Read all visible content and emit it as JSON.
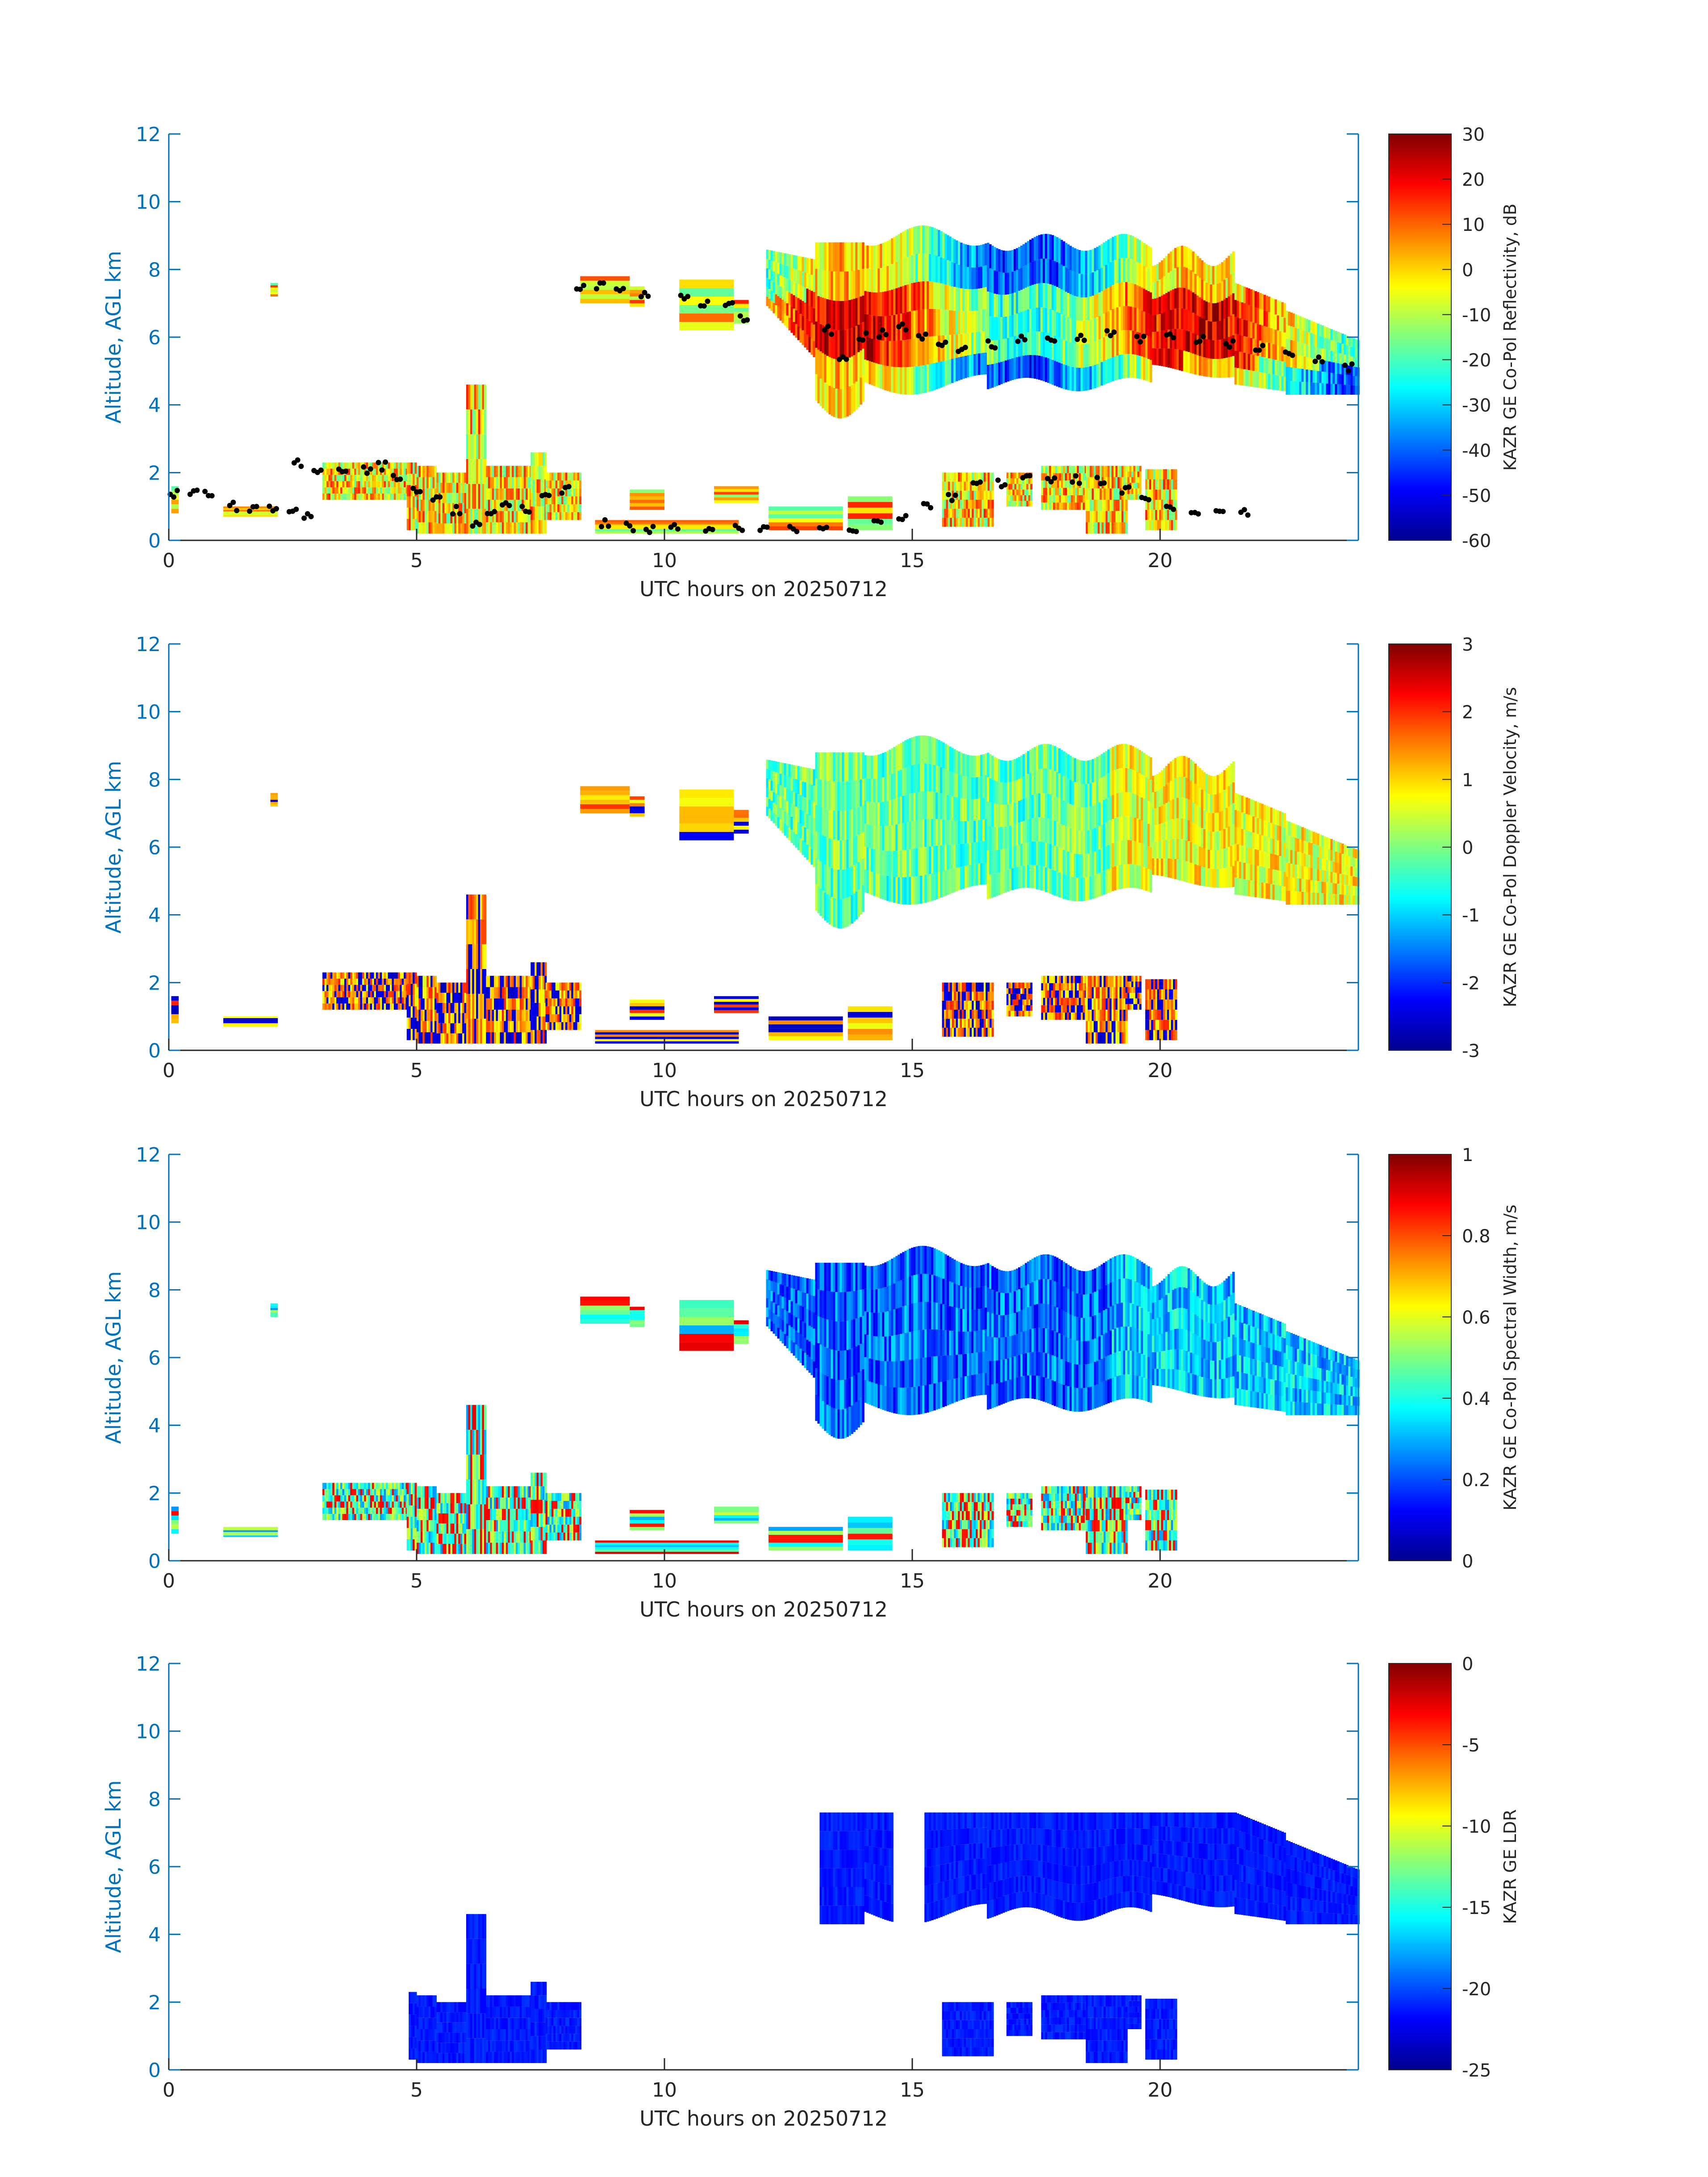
{
  "figure": {
    "date_label": "20250712",
    "axis_color": "#0072BD",
    "text_color": "#262626"
  },
  "colormap": "jet",
  "chart_data": [
    {
      "type": "heatmap",
      "variable": "reflectivity",
      "xlabel": "UTC hours on 20250712",
      "ylabel": "Altitude, AGL km",
      "xlim": [
        0,
        24
      ],
      "ylim": [
        0,
        12
      ],
      "xticks": [
        0,
        5,
        10,
        15,
        20
      ],
      "yticks": [
        0,
        2,
        4,
        6,
        8,
        10,
        12
      ],
      "colorbar": {
        "label": "KAZR GE Co-Pol Reflectivity, dB",
        "range": [
          -60,
          30
        ],
        "ticks": [
          -60,
          -50,
          -40,
          -30,
          -20,
          -10,
          0,
          10,
          20,
          30
        ]
      },
      "overlay": {
        "type": "scatter",
        "color": "#000000",
        "description_points": [
          [
            0.1,
            1.4
          ],
          [
            0.5,
            1.4
          ],
          [
            0.8,
            1.4
          ],
          [
            1.3,
            1.0
          ],
          [
            1.7,
            0.9
          ],
          [
            2.1,
            0.9
          ],
          [
            2.5,
            0.8
          ],
          [
            2.8,
            0.7
          ],
          [
            2.6,
            2.3
          ],
          [
            3.0,
            2.1
          ],
          [
            3.5,
            2.1
          ],
          [
            4.0,
            2.1
          ],
          [
            4.3,
            2.2
          ],
          [
            4.6,
            1.9
          ],
          [
            5.0,
            1.5
          ],
          [
            5.4,
            1.2
          ],
          [
            5.8,
            0.9
          ],
          [
            6.2,
            0.5
          ],
          [
            6.5,
            0.8
          ],
          [
            6.8,
            1.0
          ],
          [
            7.2,
            0.9
          ],
          [
            7.6,
            1.3
          ],
          [
            8.0,
            1.5
          ],
          [
            8.3,
            7.5
          ],
          [
            8.7,
            7.5
          ],
          [
            9.1,
            7.4
          ],
          [
            9.6,
            7.3
          ],
          [
            10.4,
            7.2
          ],
          [
            10.8,
            7.0
          ],
          [
            11.3,
            6.9
          ],
          [
            11.6,
            6.6
          ],
          [
            8.8,
            0.5
          ],
          [
            9.3,
            0.4
          ],
          [
            9.7,
            0.3
          ],
          [
            10.2,
            0.4
          ],
          [
            10.9,
            0.3
          ],
          [
            11.5,
            0.4
          ],
          [
            12.0,
            0.3
          ],
          [
            12.6,
            0.3
          ],
          [
            13.2,
            0.3
          ],
          [
            13.8,
            0.3
          ],
          [
            14.3,
            0.5
          ],
          [
            14.8,
            0.7
          ],
          [
            15.3,
            1.0
          ],
          [
            15.8,
            1.3
          ],
          [
            16.3,
            1.6
          ],
          [
            16.8,
            1.7
          ],
          [
            17.3,
            1.8
          ],
          [
            17.8,
            1.8
          ],
          [
            18.3,
            1.8
          ],
          [
            18.8,
            1.8
          ],
          [
            19.3,
            1.5
          ],
          [
            19.7,
            1.3
          ],
          [
            20.2,
            1.0
          ],
          [
            20.7,
            0.9
          ],
          [
            21.2,
            0.9
          ],
          [
            21.7,
            0.8
          ],
          [
            13.3,
            6.2
          ],
          [
            13.6,
            5.4
          ],
          [
            14.0,
            6.0
          ],
          [
            14.4,
            6.1
          ],
          [
            14.8,
            6.3
          ],
          [
            15.2,
            6.0
          ],
          [
            15.6,
            5.8
          ],
          [
            16.0,
            5.6
          ],
          [
            16.6,
            5.8
          ],
          [
            17.2,
            6.0
          ],
          [
            17.8,
            6.0
          ],
          [
            18.4,
            6.0
          ],
          [
            19.0,
            6.1
          ],
          [
            19.6,
            5.9
          ],
          [
            20.2,
            6.0
          ],
          [
            20.8,
            5.9
          ],
          [
            21.4,
            5.8
          ],
          [
            22.0,
            5.7
          ],
          [
            22.6,
            5.5
          ],
          [
            23.2,
            5.3
          ],
          [
            23.8,
            5.1
          ]
        ]
      }
    },
    {
      "type": "heatmap",
      "variable": "velocity",
      "xlabel": "UTC hours on 20250712",
      "ylabel": "Altitude, AGL km",
      "xlim": [
        0,
        24
      ],
      "ylim": [
        0,
        12
      ],
      "xticks": [
        0,
        5,
        10,
        15,
        20
      ],
      "yticks": [
        0,
        2,
        4,
        6,
        8,
        10,
        12
      ],
      "colorbar": {
        "label": "KAZR GE Co-Pol Doppler Velocity, m/s",
        "range": [
          -3,
          3
        ],
        "ticks": [
          -3,
          -2,
          -1,
          0,
          1,
          2,
          3
        ]
      }
    },
    {
      "type": "heatmap",
      "variable": "spectral_width",
      "xlabel": "UTC hours on 20250712",
      "ylabel": "Altitude, AGL km",
      "xlim": [
        0,
        24
      ],
      "ylim": [
        0,
        12
      ],
      "xticks": [
        0,
        5,
        10,
        15,
        20
      ],
      "yticks": [
        0,
        2,
        4,
        6,
        8,
        10,
        12
      ],
      "colorbar": {
        "label": "KAZR GE Co-Pol Spectral Width, m/s",
        "range": [
          0,
          1
        ],
        "ticks": [
          0,
          0.2,
          0.4,
          0.6,
          0.8,
          1
        ]
      }
    },
    {
      "type": "heatmap",
      "variable": "ldr",
      "xlabel": "UTC hours on 20250712",
      "ylabel": "Altitude, AGL km",
      "xlim": [
        0,
        24
      ],
      "ylim": [
        0,
        12
      ],
      "xticks": [
        0,
        5,
        10,
        15,
        20
      ],
      "yticks": [
        0,
        2,
        4,
        6,
        8,
        10,
        12
      ],
      "colorbar": {
        "label": "KAZR GE LDR",
        "range": [
          -25,
          0
        ],
        "ticks": [
          -25,
          -20,
          -15,
          -10,
          -5,
          0
        ]
      }
    }
  ]
}
